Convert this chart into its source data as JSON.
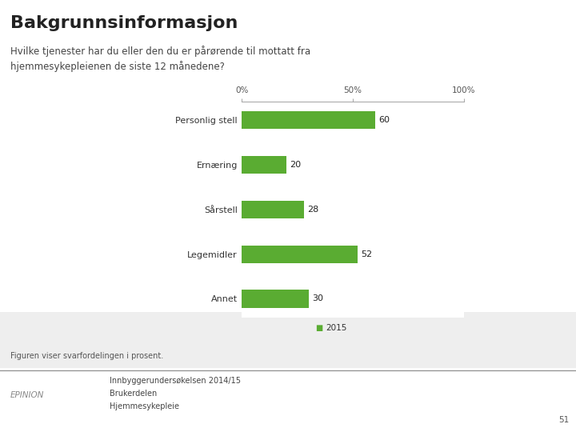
{
  "title": "Bakgrunnsinformasjon",
  "subtitle": "Hvilke tjenester har du eller den du er pårørende til mottatt fra\nhjemmesykepleienen de siste 12 månedene?",
  "categories": [
    "Personlig stell",
    "Ernæring",
    "Sårstell",
    "Legemidler",
    "Annet"
  ],
  "values": [
    60,
    20,
    28,
    52,
    30
  ],
  "bar_color": "#5aac32",
  "xlim": [
    0,
    100
  ],
  "xtick_labels": [
    "0%",
    "50%",
    "100%"
  ],
  "legend_label": "2015",
  "legend_color": "#5aac32",
  "footer_note": "Figuren viser svarfordelingen i prosent.",
  "footer_text1": "Innbyggerundersøkelsen 2014/15",
  "footer_text2": "Brukerdelen",
  "footer_text3": "Hjemmesykepleie",
  "epinion_text": "EPINION",
  "page_number": "51",
  "background_color": "#ffffff",
  "footer_bg_color": "#eeeeee",
  "title_fontsize": 16,
  "subtitle_fontsize": 8.5,
  "label_fontsize": 8,
  "value_fontsize": 8,
  "tick_fontsize": 7.5
}
